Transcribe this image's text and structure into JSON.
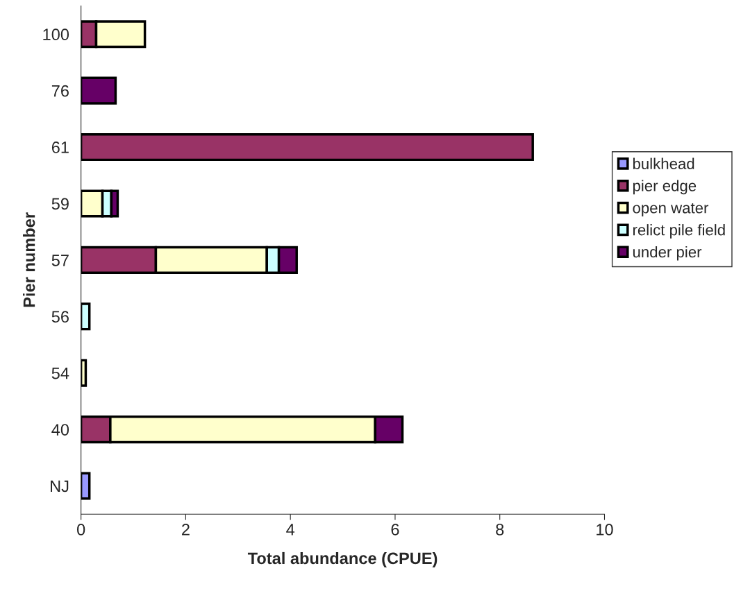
{
  "chart_data": {
    "type": "bar",
    "orientation": "horizontal",
    "stacked": true,
    "xlabel": "Total abundance (CPUE)",
    "ylabel": "Pier number",
    "categories": [
      "100",
      "76",
      "61",
      "59",
      "57",
      "56",
      "54",
      "40",
      "NJ"
    ],
    "series": [
      {
        "name": "bulkhead",
        "color": "#9999ff",
        "values": [
          null,
          null,
          null,
          null,
          null,
          null,
          null,
          null,
          0.16
        ]
      },
      {
        "name": "pier edge",
        "color": "#993366",
        "values": [
          0.29,
          null,
          8.63,
          null,
          1.43,
          null,
          null,
          0.56,
          null
        ]
      },
      {
        "name": "open water",
        "color": "#ffffcc",
        "values": [
          0.93,
          null,
          null,
          0.41,
          2.12,
          null,
          0.09,
          5.06,
          null
        ]
      },
      {
        "name": "relict pile field",
        "color": "#ccffff",
        "values": [
          null,
          null,
          null,
          0.17,
          0.23,
          0.16,
          null,
          null,
          null
        ]
      },
      {
        "name": "under pier",
        "color": "#660066",
        "values": [
          null,
          0.66,
          null,
          0.12,
          0.34,
          null,
          null,
          0.52,
          null
        ]
      }
    ],
    "xlim": [
      0,
      10
    ],
    "xticks": [
      0,
      2,
      4,
      6,
      8,
      10
    ],
    "grid": false,
    "legend": "right"
  }
}
